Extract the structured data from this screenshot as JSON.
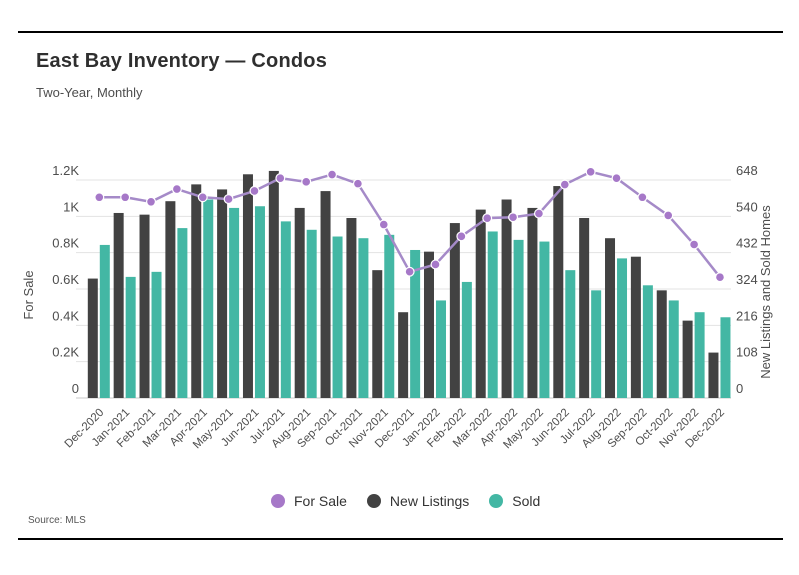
{
  "header": {
    "title": "East Bay Inventory — Condos",
    "subtitle": "Two-Year, Monthly"
  },
  "source": "Source: MLS",
  "legend": {
    "items": [
      {
        "label": "For Sale",
        "color": "#a678c8"
      },
      {
        "label": "New Listings",
        "color": "#424242"
      },
      {
        "label": "Sold",
        "color": "#43b7a4"
      }
    ]
  },
  "chart_data": {
    "type": "combo-bar-line",
    "title": "East Bay Inventory — Condos",
    "subtitle": "Two-Year, Monthly",
    "grid": true,
    "legend_position": "bottom",
    "categories": [
      "Dec-2020",
      "Jan-2021",
      "Feb-2021",
      "Mar-2021",
      "Apr-2021",
      "May-2021",
      "Jun-2021",
      "Jul-2021",
      "Aug-2021",
      "Sep-2021",
      "Oct-2021",
      "Nov-2021",
      "Dec-2021",
      "Jan-2022",
      "Feb-2022",
      "Mar-2022",
      "Apr-2022",
      "May-2022",
      "Jun-2022",
      "Jul-2022",
      "Aug-2022",
      "Sep-2022",
      "Oct-2022",
      "Nov-2022",
      "Dec-2022"
    ],
    "left_axis": {
      "label": "For Sale",
      "tick_values": [
        0,
        200,
        400,
        600,
        800,
        1000,
        1200
      ],
      "tick_labels": [
        "0",
        "0.2K",
        "0.4K",
        "0.6K",
        "0.8K",
        "1K",
        "1.2K"
      ],
      "max": 1200
    },
    "right_axis": {
      "label": "New Listings and Sold Homes",
      "tick_values": [
        0,
        108,
        216,
        324,
        432,
        540,
        648
      ],
      "tick_labels": [
        "0",
        "108",
        "216",
        "324",
        "432",
        "540",
        "648"
      ],
      "max": 648
    },
    "series": [
      {
        "name": "For Sale",
        "type": "line",
        "axis": "left",
        "color": "#a678c8",
        "line_color": "#a58ac8",
        "values": [
          1105,
          1105,
          1080,
          1150,
          1105,
          1095,
          1140,
          1210,
          1190,
          1230,
          1180,
          955,
          695,
          735,
          890,
          990,
          995,
          1015,
          1175,
          1245,
          1210,
          1105,
          1005,
          845,
          665
        ]
      },
      {
        "name": "New Listings",
        "type": "bar",
        "axis": "right",
        "color": "#424242",
        "values": [
          355,
          550,
          545,
          585,
          635,
          620,
          665,
          675,
          565,
          615,
          535,
          380,
          255,
          435,
          520,
          560,
          590,
          565,
          630,
          535,
          475,
          420,
          320,
          230,
          135
        ]
      },
      {
        "name": "Sold",
        "type": "bar",
        "axis": "right",
        "color": "#43b7a4",
        "values": [
          455,
          360,
          375,
          505,
          590,
          565,
          570,
          525,
          500,
          480,
          475,
          485,
          440,
          290,
          345,
          495,
          470,
          465,
          380,
          320,
          415,
          335,
          290,
          255,
          240
        ]
      }
    ],
    "colors": {
      "gridline": "#e3e3e3",
      "baseline": "#c9c9c9",
      "tick_text": "#4d4d4d",
      "axis_title_text": "#4d4d4d"
    }
  }
}
